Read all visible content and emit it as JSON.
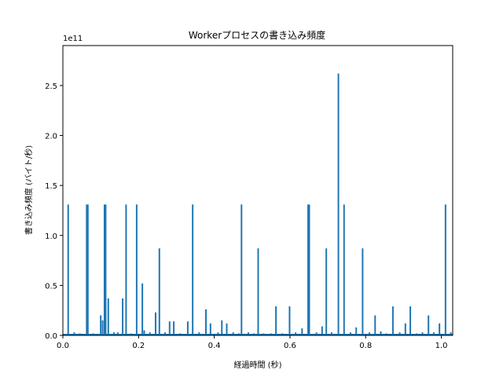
{
  "chart_data": {
    "type": "line",
    "title": "Workerプロセスの書き込み頻度",
    "xlabel": "経過時間 (秒)",
    "ylabel": "書き込み頻度 (バイト/秒)",
    "y_offset_label": "1e11",
    "xlim": [
      0.0,
      1.03
    ],
    "ylim": [
      0.0,
      2.9
    ],
    "x_ticks": [
      0.0,
      0.2,
      0.4,
      0.6,
      0.8,
      1.0
    ],
    "x_tick_labels": [
      "0.0",
      "0.2",
      "0.4",
      "0.6",
      "0.8",
      "1.0"
    ],
    "y_ticks": [
      0.0,
      0.5,
      1.0,
      1.5,
      2.0,
      2.5
    ],
    "y_tick_labels": [
      "0.0",
      "0.5",
      "1.0",
      "1.5",
      "2.0",
      "2.5"
    ],
    "grid": false,
    "line_color": "#1f77b4",
    "series": [
      {
        "spikes": [
          {
            "x": 0.014,
            "y": 1.31
          },
          {
            "x": 0.03,
            "y": 0.03
          },
          {
            "x": 0.045,
            "y": 0.02
          },
          {
            "x": 0.063,
            "y": 1.31
          },
          {
            "x": 0.066,
            "y": 1.31
          },
          {
            "x": 0.08,
            "y": 0.02
          },
          {
            "x": 0.1,
            "y": 0.2
          },
          {
            "x": 0.105,
            "y": 0.15
          },
          {
            "x": 0.11,
            "y": 1.31
          },
          {
            "x": 0.113,
            "y": 1.31
          },
          {
            "x": 0.12,
            "y": 0.37
          },
          {
            "x": 0.135,
            "y": 0.03
          },
          {
            "x": 0.145,
            "y": 0.03
          },
          {
            "x": 0.158,
            "y": 0.37
          },
          {
            "x": 0.167,
            "y": 1.31
          },
          {
            "x": 0.18,
            "y": 0.02
          },
          {
            "x": 0.195,
            "y": 1.31
          },
          {
            "x": 0.21,
            "y": 0.52
          },
          {
            "x": 0.215,
            "y": 0.05
          },
          {
            "x": 0.23,
            "y": 0.03
          },
          {
            "x": 0.245,
            "y": 0.23
          },
          {
            "x": 0.255,
            "y": 0.87
          },
          {
            "x": 0.27,
            "y": 0.03
          },
          {
            "x": 0.282,
            "y": 0.14
          },
          {
            "x": 0.293,
            "y": 0.14
          },
          {
            "x": 0.31,
            "y": 0.02
          },
          {
            "x": 0.33,
            "y": 0.14
          },
          {
            "x": 0.343,
            "y": 1.31
          },
          {
            "x": 0.36,
            "y": 0.03
          },
          {
            "x": 0.378,
            "y": 0.26
          },
          {
            "x": 0.39,
            "y": 0.12
          },
          {
            "x": 0.41,
            "y": 0.03
          },
          {
            "x": 0.42,
            "y": 0.15
          },
          {
            "x": 0.433,
            "y": 0.12
          },
          {
            "x": 0.45,
            "y": 0.03
          },
          {
            "x": 0.465,
            "y": 0.02
          },
          {
            "x": 0.472,
            "y": 1.31
          },
          {
            "x": 0.49,
            "y": 0.03
          },
          {
            "x": 0.505,
            "y": 0.02
          },
          {
            "x": 0.516,
            "y": 0.87
          },
          {
            "x": 0.53,
            "y": 0.02
          },
          {
            "x": 0.55,
            "y": 0.02
          },
          {
            "x": 0.563,
            "y": 0.29
          },
          {
            "x": 0.58,
            "y": 0.02
          },
          {
            "x": 0.599,
            "y": 0.29
          },
          {
            "x": 0.615,
            "y": 0.03
          },
          {
            "x": 0.632,
            "y": 0.07
          },
          {
            "x": 0.648,
            "y": 1.31
          },
          {
            "x": 0.651,
            "y": 1.31
          },
          {
            "x": 0.67,
            "y": 0.03
          },
          {
            "x": 0.685,
            "y": 0.09
          },
          {
            "x": 0.696,
            "y": 0.87
          },
          {
            "x": 0.71,
            "y": 0.03
          },
          {
            "x": 0.728,
            "y": 2.62
          },
          {
            "x": 0.743,
            "y": 1.31
          },
          {
            "x": 0.76,
            "y": 0.03
          },
          {
            "x": 0.775,
            "y": 0.08
          },
          {
            "x": 0.792,
            "y": 0.87
          },
          {
            "x": 0.81,
            "y": 0.03
          },
          {
            "x": 0.825,
            "y": 0.2
          },
          {
            "x": 0.84,
            "y": 0.04
          },
          {
            "x": 0.855,
            "y": 0.02
          },
          {
            "x": 0.872,
            "y": 0.29
          },
          {
            "x": 0.89,
            "y": 0.03
          },
          {
            "x": 0.905,
            "y": 0.12
          },
          {
            "x": 0.918,
            "y": 0.29
          },
          {
            "x": 0.935,
            "y": 0.02
          },
          {
            "x": 0.95,
            "y": 0.03
          },
          {
            "x": 0.966,
            "y": 0.2
          },
          {
            "x": 0.98,
            "y": 0.03
          },
          {
            "x": 0.995,
            "y": 0.12
          },
          {
            "x": 1.011,
            "y": 1.31
          },
          {
            "x": 1.025,
            "y": 0.03
          }
        ]
      }
    ]
  }
}
